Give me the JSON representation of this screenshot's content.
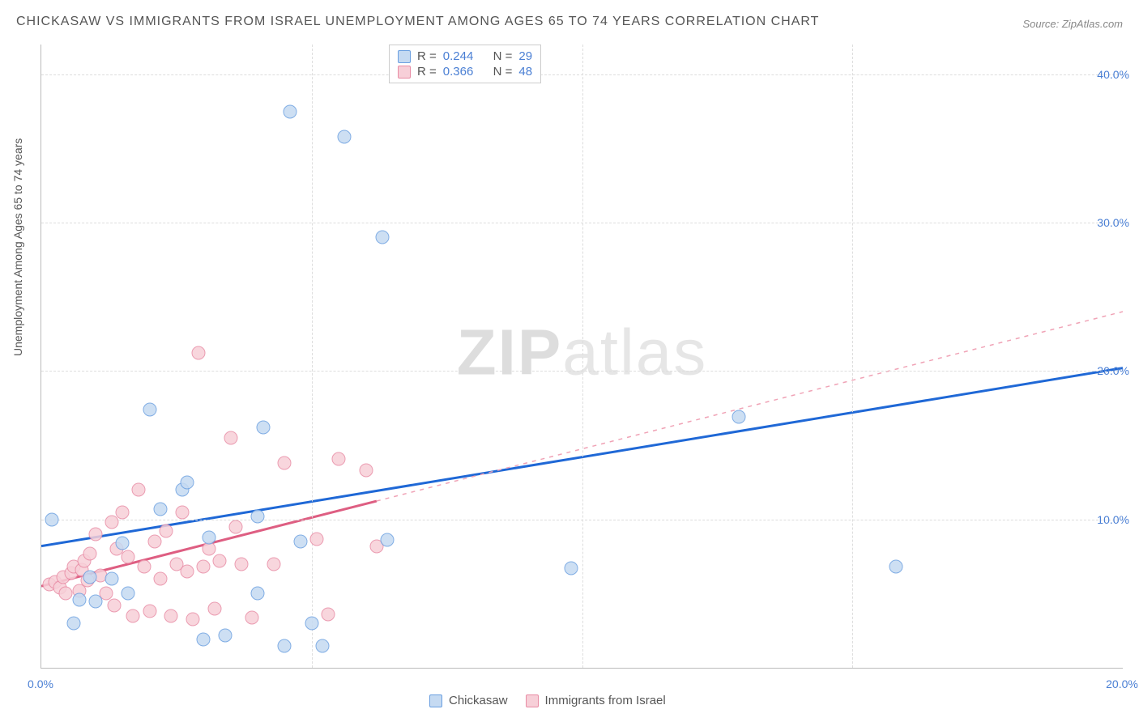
{
  "title": "CHICKASAW VS IMMIGRANTS FROM ISRAEL UNEMPLOYMENT AMONG AGES 65 TO 74 YEARS CORRELATION CHART",
  "source": "Source: ZipAtlas.com",
  "y_axis_label": "Unemployment Among Ages 65 to 74 years",
  "watermark_a": "ZIP",
  "watermark_b": "atlas",
  "chart": {
    "type": "scatter",
    "xlim": [
      0,
      20
    ],
    "ylim": [
      0,
      42
    ],
    "x_ticks": [
      {
        "v": 0,
        "label": "0.0%"
      },
      {
        "v": 20,
        "label": "20.0%"
      }
    ],
    "y_ticks": [
      {
        "v": 10,
        "label": "10.0%"
      },
      {
        "v": 20,
        "label": "20.0%"
      },
      {
        "v": 30,
        "label": "30.0%"
      },
      {
        "v": 40,
        "label": "40.0%"
      }
    ],
    "grid_color": "#dddddd",
    "background_color": "#ffffff",
    "series": [
      {
        "name": "Chickasaw",
        "marker_fill": "#c5daf2",
        "marker_stroke": "#6a9fe0",
        "marker_size": 17,
        "line_color": "#1f68d6",
        "line_dash_extend": "#6aa0e8",
        "line_width": 3,
        "trend": {
          "x1": 0,
          "y1": 8.2,
          "x2": 20,
          "y2": 20.2,
          "solid_until_x": 20
        },
        "R": "0.244",
        "N": "29",
        "points": [
          {
            "x": 0.2,
            "y": 10.0
          },
          {
            "x": 0.7,
            "y": 4.6
          },
          {
            "x": 0.6,
            "y": 3.0
          },
          {
            "x": 1.5,
            "y": 8.4
          },
          {
            "x": 1.6,
            "y": 5.0
          },
          {
            "x": 2.2,
            "y": 10.7
          },
          {
            "x": 2.6,
            "y": 12.0
          },
          {
            "x": 2.7,
            "y": 12.5
          },
          {
            "x": 2.0,
            "y": 17.4
          },
          {
            "x": 3.0,
            "y": 1.9
          },
          {
            "x": 3.1,
            "y": 8.8
          },
          {
            "x": 3.4,
            "y": 2.2
          },
          {
            "x": 4.0,
            "y": 10.2
          },
          {
            "x": 4.1,
            "y": 16.2
          },
          {
            "x": 4.5,
            "y": 1.5
          },
          {
            "x": 4.6,
            "y": 37.5
          },
          {
            "x": 5.6,
            "y": 35.8
          },
          {
            "x": 6.3,
            "y": 29.0
          },
          {
            "x": 4.0,
            "y": 5.0
          },
          {
            "x": 4.8,
            "y": 8.5
          },
          {
            "x": 5.2,
            "y": 1.5
          },
          {
            "x": 9.8,
            "y": 6.7
          },
          {
            "x": 12.9,
            "y": 16.9
          },
          {
            "x": 15.8,
            "y": 6.8
          },
          {
            "x": 0.9,
            "y": 6.1
          },
          {
            "x": 1.0,
            "y": 4.5
          },
          {
            "x": 1.3,
            "y": 6.0
          },
          {
            "x": 6.4,
            "y": 8.6
          },
          {
            "x": 5.0,
            "y": 3.0
          }
        ]
      },
      {
        "name": "Immigrants from Israel",
        "marker_fill": "#f7cfd8",
        "marker_stroke": "#e88ba4",
        "marker_size": 17,
        "line_color": "#de5e82",
        "line_dash_extend": "#f0a3b6",
        "line_width": 3,
        "trend": {
          "x1": 0,
          "y1": 5.5,
          "x2": 20,
          "y2": 24.0,
          "solid_until_x": 6.2
        },
        "R": "0.366",
        "N": "48",
        "points": [
          {
            "x": 0.15,
            "y": 5.6
          },
          {
            "x": 0.25,
            "y": 5.8
          },
          {
            "x": 0.35,
            "y": 5.4
          },
          {
            "x": 0.4,
            "y": 6.1
          },
          {
            "x": 0.45,
            "y": 5.0
          },
          {
            "x": 0.55,
            "y": 6.4
          },
          {
            "x": 0.6,
            "y": 6.8
          },
          {
            "x": 0.7,
            "y": 5.2
          },
          {
            "x": 0.75,
            "y": 6.6
          },
          {
            "x": 0.8,
            "y": 7.2
          },
          {
            "x": 0.85,
            "y": 5.9
          },
          {
            "x": 0.9,
            "y": 7.7
          },
          {
            "x": 1.0,
            "y": 9.0
          },
          {
            "x": 1.1,
            "y": 6.2
          },
          {
            "x": 1.2,
            "y": 5.0
          },
          {
            "x": 1.3,
            "y": 9.8
          },
          {
            "x": 1.35,
            "y": 4.2
          },
          {
            "x": 1.4,
            "y": 8.0
          },
          {
            "x": 1.5,
            "y": 10.5
          },
          {
            "x": 1.6,
            "y": 7.5
          },
          {
            "x": 1.7,
            "y": 3.5
          },
          {
            "x": 1.8,
            "y": 12.0
          },
          {
            "x": 1.9,
            "y": 6.8
          },
          {
            "x": 2.0,
            "y": 3.8
          },
          {
            "x": 2.1,
            "y": 8.5
          },
          {
            "x": 2.2,
            "y": 6.0
          },
          {
            "x": 2.3,
            "y": 9.2
          },
          {
            "x": 2.4,
            "y": 3.5
          },
          {
            "x": 2.5,
            "y": 7.0
          },
          {
            "x": 2.6,
            "y": 10.5
          },
          {
            "x": 2.7,
            "y": 6.5
          },
          {
            "x": 2.8,
            "y": 3.3
          },
          {
            "x": 2.9,
            "y": 21.2
          },
          {
            "x": 3.0,
            "y": 6.8
          },
          {
            "x": 3.1,
            "y": 8.0
          },
          {
            "x": 3.2,
            "y": 4.0
          },
          {
            "x": 3.3,
            "y": 7.2
          },
          {
            "x": 3.5,
            "y": 15.5
          },
          {
            "x": 3.6,
            "y": 9.5
          },
          {
            "x": 3.7,
            "y": 7.0
          },
          {
            "x": 3.9,
            "y": 3.4
          },
          {
            "x": 4.3,
            "y": 7.0
          },
          {
            "x": 4.5,
            "y": 13.8
          },
          {
            "x": 5.1,
            "y": 8.7
          },
          {
            "x": 5.3,
            "y": 3.6
          },
          {
            "x": 5.5,
            "y": 14.1
          },
          {
            "x": 6.0,
            "y": 13.3
          },
          {
            "x": 6.2,
            "y": 8.2
          }
        ]
      }
    ]
  },
  "legend_top": {
    "rlabel": "R =",
    "nlabel": "N ="
  },
  "legend_bottom": [
    {
      "swatch_fill": "#c5daf2",
      "swatch_stroke": "#6a9fe0",
      "label": "Chickasaw"
    },
    {
      "swatch_fill": "#f7cfd8",
      "swatch_stroke": "#e88ba4",
      "label": "Immigrants from Israel"
    }
  ]
}
